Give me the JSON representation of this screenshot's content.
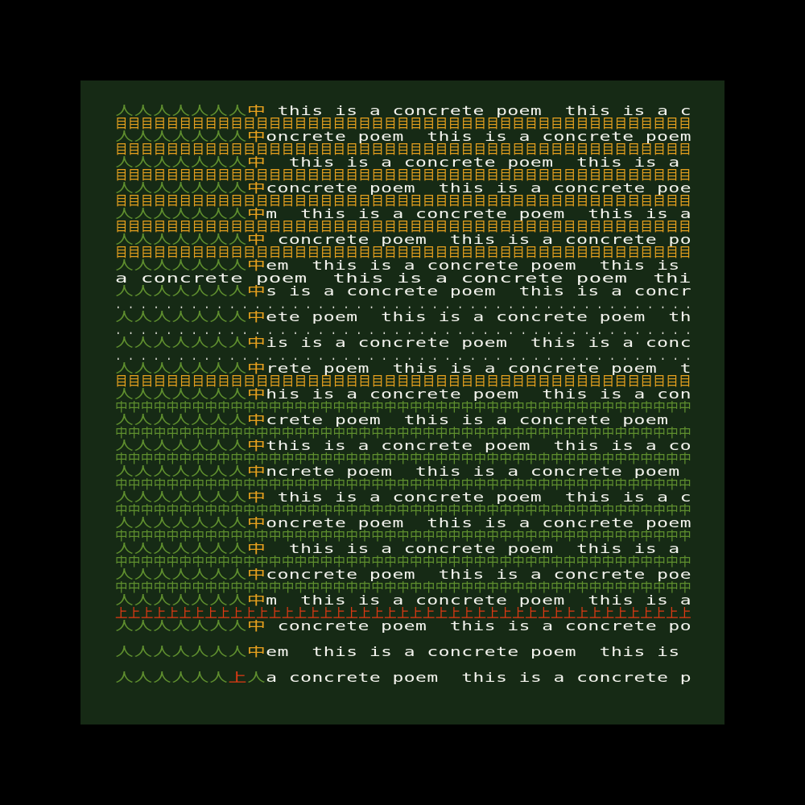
{
  "colors": {
    "background": "#000000",
    "panel": "#162a15",
    "text": "#f4f4ee",
    "orange": "#e6a01e",
    "green": "#5f8f2e",
    "red": "#e03a14"
  },
  "rows": [
    {
      "type": "text",
      "prefix": "人人人人人人人",
      "mark": "中",
      "text": " this is a concrete poem  this is a c"
    },
    {
      "type": "fill",
      "chars": "目目目目目目目目目目目目目目目目目目目目目目目目目目目目目目目目目目目目目目目目目目目目目",
      "color": "orange"
    },
    {
      "type": "text",
      "prefix": "人人人人人人人",
      "mark": "中",
      "text": "oncrete poem  this is a concrete poem"
    },
    {
      "type": "fill",
      "chars": "目目目目目目目目目目目目目目目目目目目目目目目目目目目目目目目目目目目目目目目目目目目目目",
      "color": "orange"
    },
    {
      "type": "text",
      "prefix": "人人人人人人人",
      "mark": "中",
      "text": "  this is a concrete poem  this is a "
    },
    {
      "type": "fill",
      "chars": "目目目目目目目目目目目目目目目目目目目目目目目目目目目目目目目目目目目目目目目目目目目目目",
      "color": "orange"
    },
    {
      "type": "text",
      "prefix": "人人人人人人人",
      "mark": "中",
      "text": "concrete poem  this is a concrete poe"
    },
    {
      "type": "fill",
      "chars": "目目目目目目目目目目目目目目目目目目目目目目目目目目目目目目目目目目目目目目目目目目目目目",
      "color": "orange"
    },
    {
      "type": "text",
      "prefix": "人人人人人人人",
      "mark": "中",
      "text": "m  this is a concrete poem  this is a"
    },
    {
      "type": "fill",
      "chars": "目目目目目目目目目目目目目目目目目目目目目目目目目目目目目目目目目目目目目目目目目目目目目",
      "color": "orange"
    },
    {
      "type": "text",
      "prefix": "人人人人人人人",
      "mark": "中",
      "text": " concrete poem  this is a concrete po"
    },
    {
      "type": "fill",
      "chars": "目目目目目目目目目目目目目目目目目目目目目目目目目目目目目目目目目目目目目目目目目目目目目",
      "color": "orange"
    },
    {
      "type": "text",
      "prefix": "人人人人人人人",
      "mark": "中",
      "text": "em  this is a concrete poem  this is "
    },
    {
      "type": "plain",
      "text": "a concrete poem  this is a concrete poem  thi"
    },
    {
      "type": "text",
      "prefix": "人人人人人人人",
      "mark": "中",
      "text": "s is a concrete poem  this is a concr"
    },
    {
      "type": "fill",
      "chars": ". . . . . . . . . . . . . . . . . . . . . . . . . . . . . . . . . . . . . . . . . . . . . .",
      "color": "dot"
    },
    {
      "type": "text",
      "prefix": "人人人人人人人",
      "mark": "中",
      "text": "ete poem  this is a concrete poem  th"
    },
    {
      "type": "fill",
      "chars": ". . . . . . . . . . . . . . . . . . . . . . . . . . . . . . . . . . . . . . . . . . . . . .",
      "color": "dot"
    },
    {
      "type": "text",
      "prefix": "人人人人人人人",
      "mark": "中",
      "text": "is is a concrete poem  this is a conc"
    },
    {
      "type": "fill",
      "chars": ". . . . . . . . . . . . . . . . . . . . . . . . . . . . . . . . . . . . . . . . . . . . . .",
      "color": "dot"
    },
    {
      "type": "text",
      "prefix": "人人人人人人人",
      "mark": "中",
      "text": "rete poem  this is a concrete poem  t"
    },
    {
      "type": "fill",
      "chars": "目目目目目目目目目目目目目目目目目目目目目目目目目目目目目目目目目目目目目目目目目目目目目",
      "color": "orange"
    },
    {
      "type": "text",
      "prefix": "人人人人人人人",
      "mark": "中",
      "text": "his is a concrete poem  this is a con"
    },
    {
      "type": "fill",
      "chars": "中中中中中中中中中中中中中中中中中中中中中中中中中中中中中中中中中中中中中中中中中中中中中",
      "color": "green"
    },
    {
      "type": "text",
      "prefix": "人人人人人人人",
      "mark": "中",
      "text": "crete poem  this is a concrete poem  "
    },
    {
      "type": "fill",
      "chars": "中中中中中中中中中中中中中中中中中中中中中中中中中中中中中中中中中中中中中中中中中中中中中",
      "color": "green"
    },
    {
      "type": "text",
      "prefix": "人人人人人人人",
      "mark": "中",
      "text": "this is a concrete poem  this is a co"
    },
    {
      "type": "fill",
      "chars": "中中中中中中中中中中中中中中中中中中中中中中中中中中中中中中中中中中中中中中中中中中中中中",
      "color": "green"
    },
    {
      "type": "text",
      "prefix": "人人人人人人人",
      "mark": "中",
      "text": "ncrete poem  this is a concrete poem "
    },
    {
      "type": "fill",
      "chars": "中中中中中中中中中中中中中中中中中中中中中中中中中中中中中中中中中中中中中中中中中中中中中",
      "color": "green"
    },
    {
      "type": "text",
      "prefix": "人人人人人人人",
      "mark": "中",
      "text": " this is a concrete poem  this is a c"
    },
    {
      "type": "fill",
      "chars": "中中中中中中中中中中中中中中中中中中中中中中中中中中中中中中中中中中中中中中中中中中中中中",
      "color": "green"
    },
    {
      "type": "text",
      "prefix": "人人人人人人人",
      "mark": "中",
      "text": "oncrete poem  this is a concrete poem"
    },
    {
      "type": "fill",
      "chars": "中中中中中中中中中中中中中中中中中中中中中中中中中中中中中中中中中中中中中中中中中中中中中",
      "color": "green"
    },
    {
      "type": "text",
      "prefix": "人人人人人人人",
      "mark": "中",
      "text": "  this is a concrete poem  this is a "
    },
    {
      "type": "fill",
      "chars": "中中中中中中中中中中中中中中中中中中中中中中中中中中中中中中中中中中中中中中中中中中中中中",
      "color": "green"
    },
    {
      "type": "text",
      "prefix": "人人人人人人人",
      "mark": "中",
      "text": "concrete poem  this is a concrete poe"
    },
    {
      "type": "fill",
      "chars": "中中中中中中中中中中中中中中中中中中中中中中中中中中中中中中中中中中中中中中中中中中中中中",
      "color": "green"
    },
    {
      "type": "text",
      "prefix": "人人人人人人人",
      "mark": "中",
      "text": "m  this is a concrete poem  this is a"
    },
    {
      "type": "fill",
      "chars": "上上上上上上上上上上上上上上上上上上上上上上上上上上上上上上上上上上上上上上上上上上上上上",
      "color": "red"
    },
    {
      "type": "text",
      "prefix": "人人人人人人人",
      "mark": "中",
      "text": " concrete poem  this is a concrete po"
    },
    {
      "type": "gap"
    },
    {
      "type": "text",
      "prefix": "人人人人人人人",
      "mark": "中",
      "text": "em  this is a concrete poem  this is "
    },
    {
      "type": "gap"
    },
    {
      "type": "last",
      "prefix": "人人人人人人",
      "mark": "上",
      "prefix2": "人",
      "text": "a concrete poem  this is a concrete p"
    }
  ]
}
